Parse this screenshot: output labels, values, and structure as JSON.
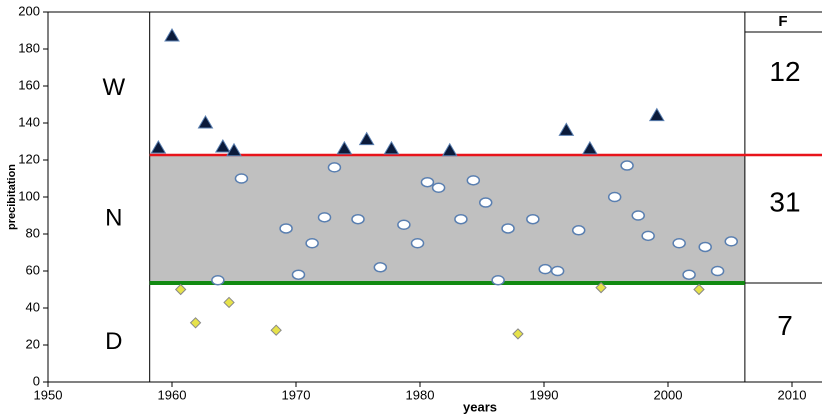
{
  "chart_data": {
    "type": "scatter",
    "x_label": "years",
    "y_label": "precibitation",
    "xlim": [
      1950,
      2010
    ],
    "xticks": [
      1950,
      1960,
      1970,
      1980,
      1990,
      2000,
      2010
    ],
    "ylim": [
      0,
      200
    ],
    "yticks": [
      0,
      20,
      40,
      60,
      80,
      100,
      120,
      140,
      160,
      180,
      200
    ],
    "period": [
      1958.2,
      2006.2
    ],
    "upper_threshold": {
      "value": 122.7,
      "color": "#e8141b"
    },
    "lower_threshold": {
      "value": 53.5,
      "color": "#128a12"
    },
    "band_color": "#c0c0c0",
    "table_header": "F",
    "zones": [
      {
        "label": "W",
        "count": 12
      },
      {
        "label": "N",
        "count": 31
      },
      {
        "label": "D",
        "count": 7
      }
    ],
    "series": [
      {
        "marker": "triangle",
        "color": "#0b1a3a",
        "x": [
          1958.9,
          1960,
          1962.7,
          1964.1,
          1965,
          1973.9,
          1975.7,
          1977.7,
          1982.4,
          1991.8,
          1993.7,
          1999.1
        ],
        "values": [
          126.5,
          187,
          140,
          127,
          125,
          126,
          131,
          126,
          125,
          136,
          126,
          144
        ]
      },
      {
        "marker": "circle",
        "color": "#ffffff",
        "x": [
          1963.7,
          1965.6,
          1969.2,
          1970.2,
          1971.3,
          1972.3,
          1973.1,
          1975,
          1976.8,
          1978.7,
          1979.8,
          1980.6,
          1981.5,
          1983.3,
          1984.3,
          1985.3,
          1986.3,
          1987.1,
          1989.1,
          1990.1,
          1991.1,
          1992.8,
          1995.7,
          1996.7,
          1997.6,
          1998.4,
          2000.9,
          2001.7,
          2003,
          2004,
          2005.1
        ],
        "values": [
          55,
          110,
          83,
          58,
          75,
          89,
          116,
          88,
          62,
          85,
          75,
          108,
          105,
          88,
          109,
          97,
          55,
          83,
          88,
          61,
          60,
          82,
          100,
          117,
          90,
          79,
          75,
          58,
          73,
          60,
          76
        ]
      },
      {
        "marker": "diamond",
        "color": "#e6e24a",
        "x": [
          1960.7,
          1961.9,
          1964.6,
          1968.4,
          1987.9,
          1994.6,
          2002.5
        ],
        "values": [
          50,
          32,
          43,
          28,
          26,
          51,
          50
        ]
      }
    ]
  }
}
